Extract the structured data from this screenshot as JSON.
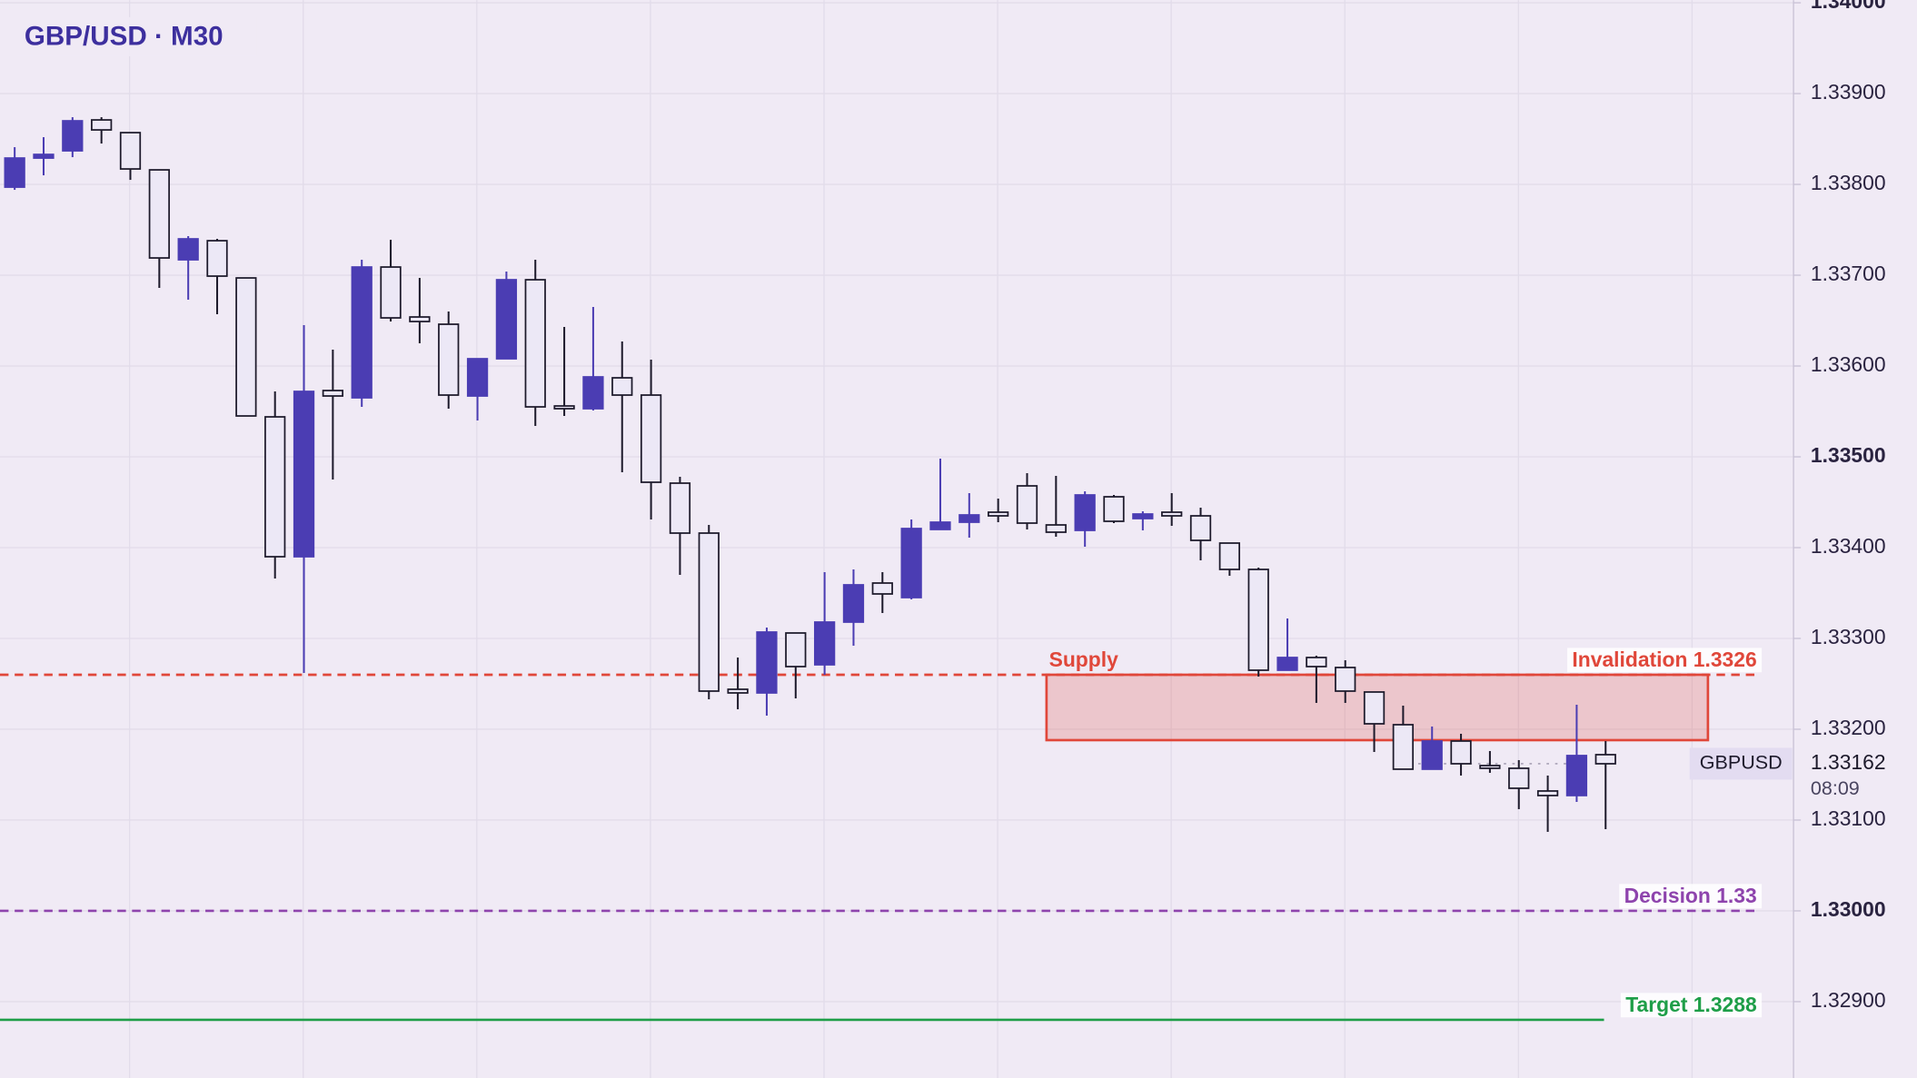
{
  "chart_data": {
    "type": "candlestick",
    "title": "GBP/USD · M30",
    "open": [
      1.33797,
      1.33829,
      1.33837,
      1.33871,
      1.33857,
      1.33816,
      1.33717,
      1.33738,
      1.33697,
      1.33544,
      1.3339,
      1.33573,
      1.33565,
      1.33709,
      1.33654,
      1.33646,
      1.33567,
      1.33608,
      1.33695,
      1.33556,
      1.33553,
      1.33587,
      1.33568,
      1.33471,
      1.33416,
      1.33244,
      1.3324,
      1.33306,
      1.33271,
      1.33318,
      1.33361,
      1.33345,
      1.3342,
      1.33428,
      1.33439,
      1.33468,
      1.33425,
      1.33419,
      1.33456,
      1.33432,
      1.33439,
      1.33435,
      1.33405,
      1.33376,
      1.33265,
      1.33279,
      1.33268,
      1.33241,
      1.33205,
      1.33156,
      1.33187,
      1.3316,
      1.33157,
      1.33132,
      1.33127,
      1.33172
    ],
    "high": [
      1.33841,
      1.33852,
      1.33874,
      1.33874,
      1.33857,
      1.33816,
      1.33743,
      1.3374,
      1.33697,
      1.33572,
      1.33645,
      1.33618,
      1.33717,
      1.33739,
      1.33697,
      1.3366,
      1.33608,
      1.33704,
      1.33717,
      1.33643,
      1.33665,
      1.33627,
      1.33607,
      1.33478,
      1.33425,
      1.33279,
      1.33312,
      1.33306,
      1.33373,
      1.33376,
      1.33373,
      1.33431,
      1.33498,
      1.3346,
      1.33454,
      1.33482,
      1.33479,
      1.33462,
      1.33458,
      1.3344,
      1.3346,
      1.33444,
      1.33405,
      1.33378,
      1.33322,
      1.33281,
      1.33276,
      1.33241,
      1.33226,
      1.33203,
      1.33195,
      1.33176,
      1.33166,
      1.33149,
      1.33227,
      1.33187
    ],
    "low": [
      1.33794,
      1.3381,
      1.3383,
      1.33845,
      1.33805,
      1.33686,
      1.33673,
      1.33657,
      1.33545,
      1.33366,
      1.33262,
      1.33475,
      1.33555,
      1.33649,
      1.33625,
      1.33553,
      1.3354,
      1.33608,
      1.33534,
      1.33545,
      1.33551,
      1.33483,
      1.33431,
      1.3337,
      1.33233,
      1.33222,
      1.33215,
      1.33234,
      1.3326,
      1.33292,
      1.33328,
      1.33343,
      1.3342,
      1.33411,
      1.33428,
      1.3342,
      1.33412,
      1.33401,
      1.33427,
      1.33419,
      1.33424,
      1.33386,
      1.33369,
      1.33258,
      1.33265,
      1.33229,
      1.33229,
      1.33175,
      1.33156,
      1.33156,
      1.33149,
      1.33152,
      1.33112,
      1.33087,
      1.3312,
      1.3309
    ],
    "close": [
      1.33829,
      1.33833,
      1.3387,
      1.3386,
      1.33817,
      1.33719,
      1.3374,
      1.33699,
      1.33545,
      1.3339,
      1.33572,
      1.33567,
      1.33709,
      1.33653,
      1.33649,
      1.33568,
      1.33608,
      1.33695,
      1.33555,
      1.33553,
      1.33588,
      1.33568,
      1.33472,
      1.33416,
      1.33242,
      1.3324,
      1.33307,
      1.33269,
      1.33318,
      1.33359,
      1.33349,
      1.33421,
      1.33428,
      1.33436,
      1.33435,
      1.33427,
      1.33417,
      1.33458,
      1.33429,
      1.33437,
      1.33435,
      1.33408,
      1.33376,
      1.33265,
      1.33279,
      1.33269,
      1.33242,
      1.33206,
      1.33156,
      1.33187,
      1.33162,
      1.33157,
      1.33135,
      1.33127,
      1.33171,
      1.33162
    ],
    "up_color": "#4b3db3",
    "down_color": "#ece8f6",
    "ylim": [
      1.32816,
      1.34003
    ],
    "yticks": [
      {
        "value": 1.329,
        "label": "1.32900"
      },
      {
        "value": 1.33,
        "label": "1.33000"
      },
      {
        "value": 1.331,
        "label": "1.33100"
      },
      {
        "value": 1.332,
        "label": "1.33200"
      },
      {
        "value": 1.333,
        "label": "1.33300"
      },
      {
        "value": 1.334,
        "label": "1.33400"
      },
      {
        "value": 1.335,
        "label": "1.33500"
      },
      {
        "value": 1.336,
        "label": "1.33600"
      },
      {
        "value": 1.337,
        "label": "1.33700"
      },
      {
        "value": 1.338,
        "label": "1.33800"
      },
      {
        "value": 1.339,
        "label": "1.33900"
      },
      {
        "value": 1.34,
        "label": "1.34000"
      }
    ],
    "grid": true,
    "zone": {
      "label": "Supply",
      "range": [
        1.33188,
        1.3326
      ],
      "color": "#e0473a"
    },
    "levels": [
      {
        "label": "Invalidation 1.3326",
        "value": 1.3326,
        "color": "#e0473a",
        "style": "dashed"
      },
      {
        "label": "Decision 1.33",
        "value": 1.33,
        "color": "#8e44ad",
        "style": "dashed"
      },
      {
        "label": "Target 1.3288",
        "value": 1.3288,
        "color": "#1e9e48",
        "style": "solid"
      }
    ],
    "current": {
      "symbol": "GBPUSD",
      "value": 1.33162,
      "countdown": "08:09"
    }
  }
}
